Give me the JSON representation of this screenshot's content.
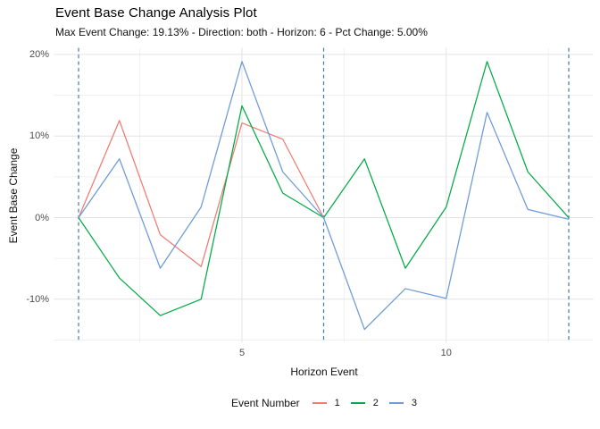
{
  "title": "Event Base Change Analysis Plot",
  "subtitle": "Max Event Change: 19.13% - Direction: both - Horizon: 6 - Pct Change: 5.00%",
  "x_axis": {
    "title": "Horizon Event",
    "tick_values": [
      5,
      10
    ],
    "tick_labels": [
      "5",
      "10"
    ]
  },
  "y_axis": {
    "title": "Event Base Change",
    "tick_values": [
      20,
      10,
      0,
      -10
    ],
    "tick_labels": [
      "20%",
      "10%",
      "0%",
      "-10%"
    ]
  },
  "legend": {
    "title": "Event Number",
    "entries": [
      {
        "label": "1",
        "color": "#f07b72"
      },
      {
        "label": "2",
        "color": "#00ab44"
      },
      {
        "label": "3",
        "color": "#6b9ad6"
      }
    ]
  },
  "colors": {
    "background": "#ffffff",
    "grid_major": "#e3e3e3",
    "grid_minor": "#f0f0f0",
    "tick_text": "#4d4d4d",
    "title_text": "#000000",
    "vline": "#4279a5"
  },
  "chart_data": {
    "type": "line",
    "title": "Event Base Change Analysis Plot",
    "subtitle": "Max Event Change: 19.13% - Direction: both - Horizon: 6 - Pct Change: 5.00%",
    "xlabel": "Horizon Event",
    "ylabel": "Event Base Change",
    "xlim": [
      0.4,
      13.6
    ],
    "ylim": [
      -15.3,
      20.8
    ],
    "y_unit": "percent",
    "legend_position": "bottom",
    "grid": {
      "x_major": [
        5,
        10
      ],
      "x_minor": [
        2.5,
        7.5,
        12.5
      ],
      "y_major": [
        20,
        10,
        0,
        -10
      ],
      "y_minor": [
        15,
        5,
        -5,
        -15
      ]
    },
    "vlines": {
      "x": [
        1,
        7,
        13
      ],
      "style": "dashed",
      "color": "#4279a5"
    },
    "series": [
      {
        "name": "1",
        "color": "#f07b72",
        "x": [
          1,
          2,
          3,
          4,
          5,
          6,
          7
        ],
        "values": [
          0,
          11.9,
          -2.1,
          -6.0,
          11.6,
          9.6,
          0
        ]
      },
      {
        "name": "2",
        "color": "#00ab44",
        "x": [
          1,
          2,
          3,
          4,
          5,
          6,
          7,
          8,
          9,
          10,
          11,
          12,
          13
        ],
        "values": [
          0,
          -7.4,
          -12.0,
          -10.0,
          13.7,
          3.0,
          0,
          7.2,
          -6.2,
          1.3,
          19.13,
          5.6,
          0
        ]
      },
      {
        "name": "3",
        "color": "#6b9ad6",
        "x": [
          1,
          2,
          3,
          4,
          5,
          6,
          7,
          8,
          9,
          10,
          11,
          12,
          13
        ],
        "values": [
          0,
          7.2,
          -6.2,
          1.3,
          19.13,
          5.6,
          0,
          -13.7,
          -8.7,
          -9.9,
          12.9,
          1.0,
          -0.2
        ]
      }
    ]
  }
}
